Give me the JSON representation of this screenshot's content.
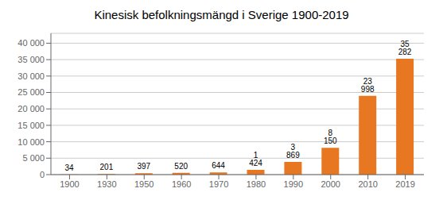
{
  "chart_data": {
    "type": "bar",
    "title": "Kinesisk befolkningsmängd i Sverige 1900-2019",
    "categories": [
      "1900",
      "1930",
      "1950",
      "1960",
      "1970",
      "1980",
      "1990",
      "2000",
      "2010",
      "2019"
    ],
    "values": [
      34,
      201,
      397,
      520,
      644,
      1424,
      3869,
      8150,
      23998,
      35282
    ],
    "value_labels": [
      "34",
      "201",
      "397",
      "520",
      "644",
      "1 424",
      "3 869",
      "8 150",
      "23 998",
      "35 282"
    ],
    "data_labels": true,
    "color": "#E87722",
    "ylim": [
      0,
      43000
    ],
    "yticks": [
      0,
      {
        "value": 5000,
        "label": "5 000"
      },
      {
        "value": 10000,
        "label": "10 000"
      },
      {
        "value": 15000,
        "label": "15 000"
      },
      {
        "value": 20000,
        "label": "20 000"
      },
      {
        "value": 25000,
        "label": "25 000"
      },
      {
        "value": 30000,
        "label": "30 000"
      },
      {
        "value": 35000,
        "label": "35 000"
      },
      {
        "value": 40000,
        "label": "40 000"
      }
    ],
    "grid": true
  }
}
